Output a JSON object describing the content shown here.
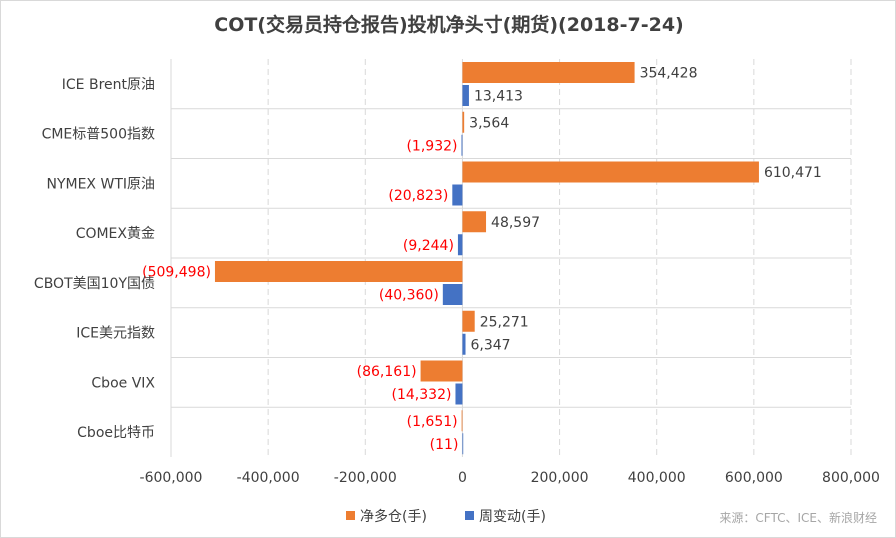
{
  "chart_data": {
    "type": "bar",
    "orientation": "horizontal",
    "title": "COT(交易员持仓报告)投机净头寸(期货)(2018-7-24)",
    "categories": [
      "ICE Brent原油",
      "CME标普500指数",
      "NYMEX WTI原油",
      "COMEX黄金",
      "CBOT美国10Y国债",
      "ICE美元指数",
      "Cboe VIX",
      "Cboe比特币"
    ],
    "series": [
      {
        "name": "净多仓(手)",
        "color": "#ed7d31",
        "values": [
          354428,
          3564,
          610471,
          48597,
          -509498,
          25271,
          -86161,
          -1651
        ]
      },
      {
        "name": "周变动(手)",
        "color": "#4472c4",
        "values": [
          13413,
          -1932,
          -20823,
          -9244,
          -40360,
          6347,
          -14332,
          -11
        ]
      }
    ],
    "value_labels": [
      [
        "354,428",
        "3,564",
        "610,471",
        "48,597",
        "(509,498)",
        "25,271",
        "(86,161)",
        "(1,651)"
      ],
      [
        "13,413",
        "(1,932)",
        "(20,823)",
        "(9,244)",
        "(40,360)",
        "6,347",
        "(14,332)",
        "(11)"
      ]
    ],
    "positive_label_color": "#404040",
    "negative_label_color": "#ff0000",
    "xlim": [
      -600000,
      800000
    ],
    "xticks": [
      -600000,
      -400000,
      -200000,
      0,
      200000,
      400000,
      600000,
      800000
    ],
    "xtick_labels": [
      "-600,000",
      "-400,000",
      "-200,000",
      "0",
      "200,000",
      "400,000",
      "600,000",
      "800,000"
    ],
    "grid": "vertical dashed",
    "legend_position": "bottom",
    "source_note": "来源：CFTC、ICE、新浪财经"
  }
}
